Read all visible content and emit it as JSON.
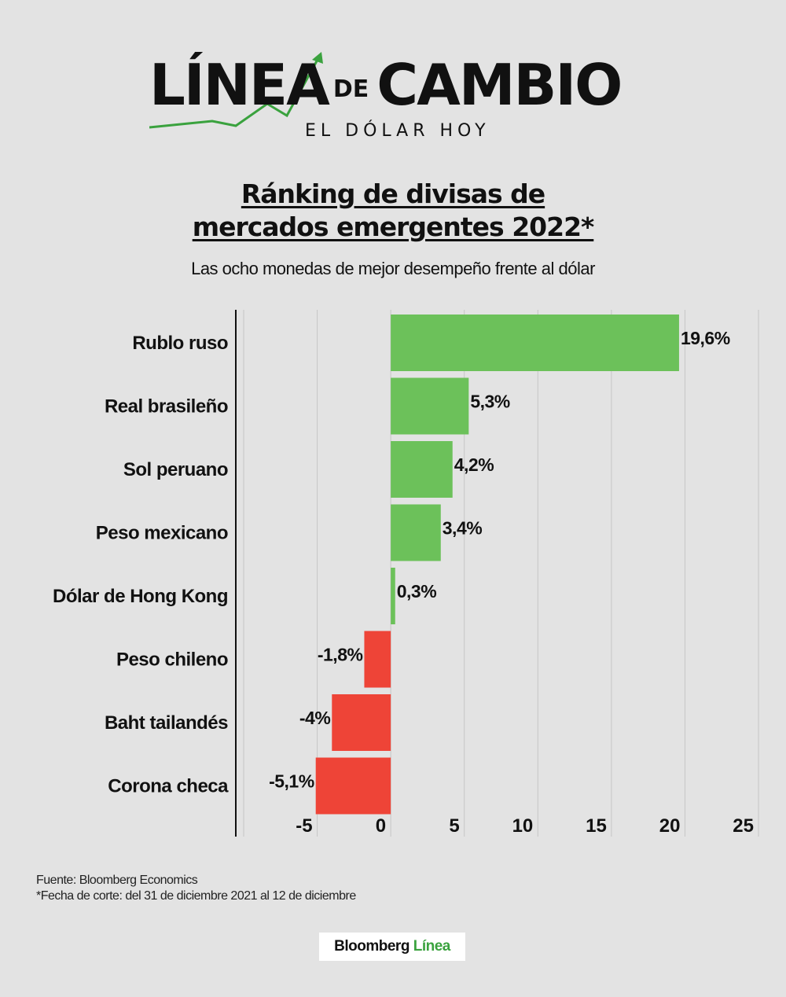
{
  "header": {
    "logo_word_1": "LÍNEA",
    "logo_word_2": "DE",
    "logo_word_3": "CAMBIO",
    "logo_subtitle": "EL DÓLAR HOY"
  },
  "colors": {
    "positive": "#6cc15a",
    "negative": "#ee4437",
    "background": "#e3e3e3",
    "grid": "#c6c6c6",
    "brand_accent": "#3aa23e"
  },
  "chart_data": {
    "type": "bar",
    "orientation": "horizontal",
    "title": "Ránking de divisas de mercados emergentes 2022*",
    "subtitle": "Las ocho monedas de mejor desempeño frente al dólar",
    "categories": [
      "Rublo ruso",
      "Real brasileño",
      "Sol peruano",
      "Peso mexicano",
      "Dólar de Hong Kong",
      "Peso chileno",
      "Baht tailandés",
      "Corona checa"
    ],
    "values": [
      19.6,
      5.3,
      4.2,
      3.4,
      0.3,
      -1.8,
      -4,
      -5.1
    ],
    "value_labels": [
      "19,6%",
      "5,3%",
      "4,2%",
      "3,4%",
      "0,3%",
      "-1,8%",
      "-4%",
      "-5,1%"
    ],
    "xlim": [
      -10,
      25
    ],
    "xticks": [
      -5,
      0,
      5,
      10,
      15,
      20,
      25
    ],
    "xtick_labels": [
      "-5",
      "0",
      "5",
      "10",
      "15",
      "20",
      "25"
    ],
    "grid": true,
    "xlabel": "",
    "ylabel": ""
  },
  "footer": {
    "source": "Fuente: Bloomberg Economics",
    "note": "*Fecha de corte: del 31 de diciembre 2021 al 12 de diciembre"
  },
  "brand": {
    "name": "Bloomberg",
    "accent": "Línea"
  }
}
